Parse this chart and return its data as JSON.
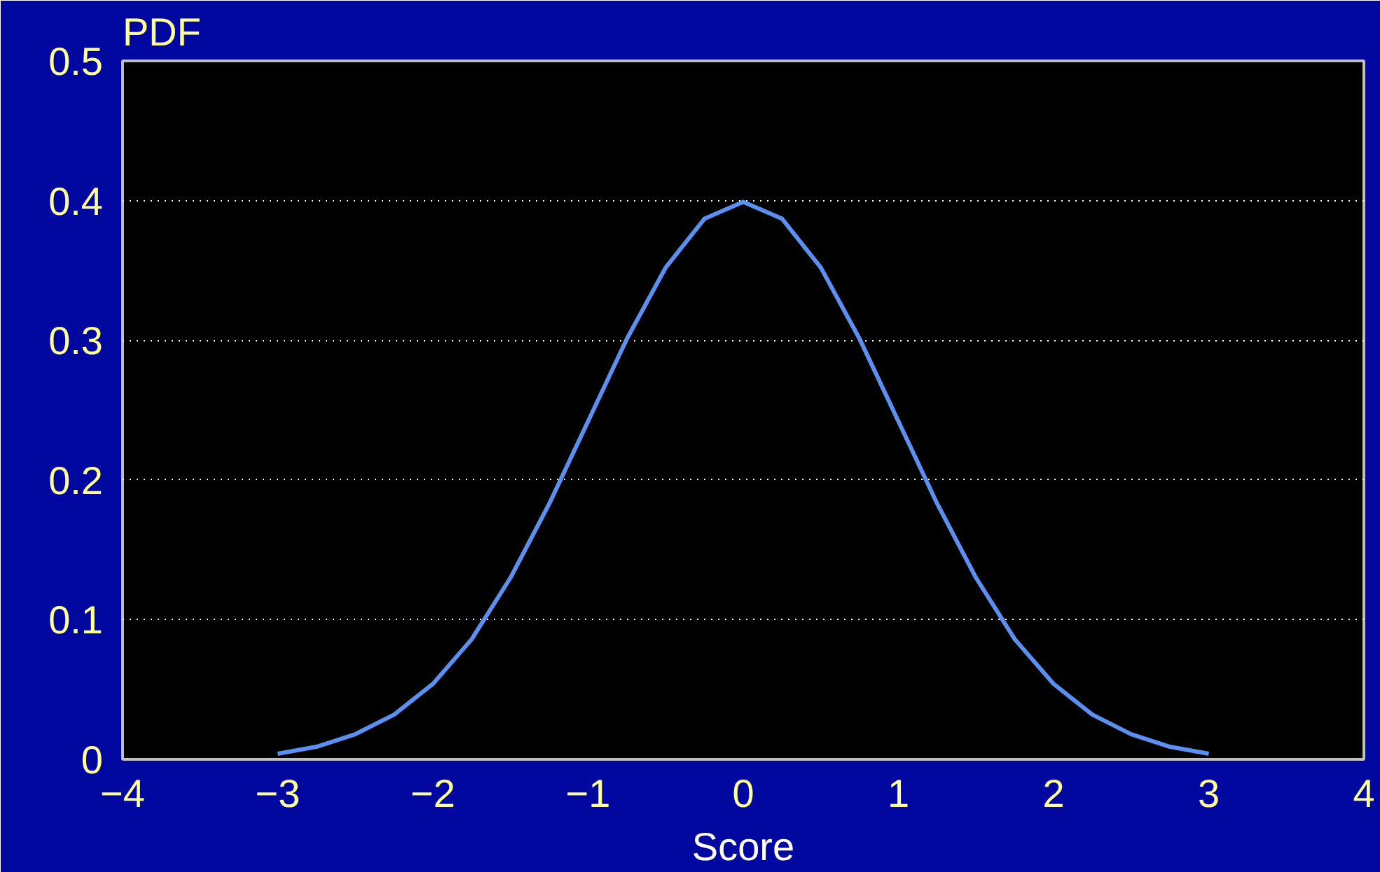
{
  "chart_data": {
    "type": "line",
    "ylabel": "PDF",
    "xlabel": "Score",
    "x": [
      -3,
      -2.75,
      -2.5,
      -2.25,
      -2,
      -1.75,
      -1.5,
      -1.25,
      -1,
      -0.75,
      -0.5,
      -0.25,
      0,
      0.25,
      0.5,
      0.75,
      1,
      1.25,
      1.5,
      1.75,
      2,
      2.25,
      2.5,
      2.75,
      3
    ],
    "series": [
      {
        "color": "#5b8ff0",
        "values": [
          0.004,
          0.009,
          0.018,
          0.032,
          0.054,
          0.086,
          0.13,
          0.183,
          0.242,
          0.301,
          0.352,
          0.387,
          0.399,
          0.387,
          0.352,
          0.301,
          0.242,
          0.183,
          0.13,
          0.086,
          0.054,
          0.032,
          0.018,
          0.009,
          0.004
        ]
      }
    ],
    "xlim": [
      -4,
      4
    ],
    "xticks": [
      -4,
      -3,
      -2,
      -1,
      0,
      1,
      2,
      3,
      4
    ],
    "ylim": [
      0,
      0.5
    ],
    "yticks": [
      0,
      0.1,
      0.2,
      0.3,
      0.4,
      0.5
    ],
    "grid": "y",
    "marker": "none",
    "line_style": "solid"
  }
}
